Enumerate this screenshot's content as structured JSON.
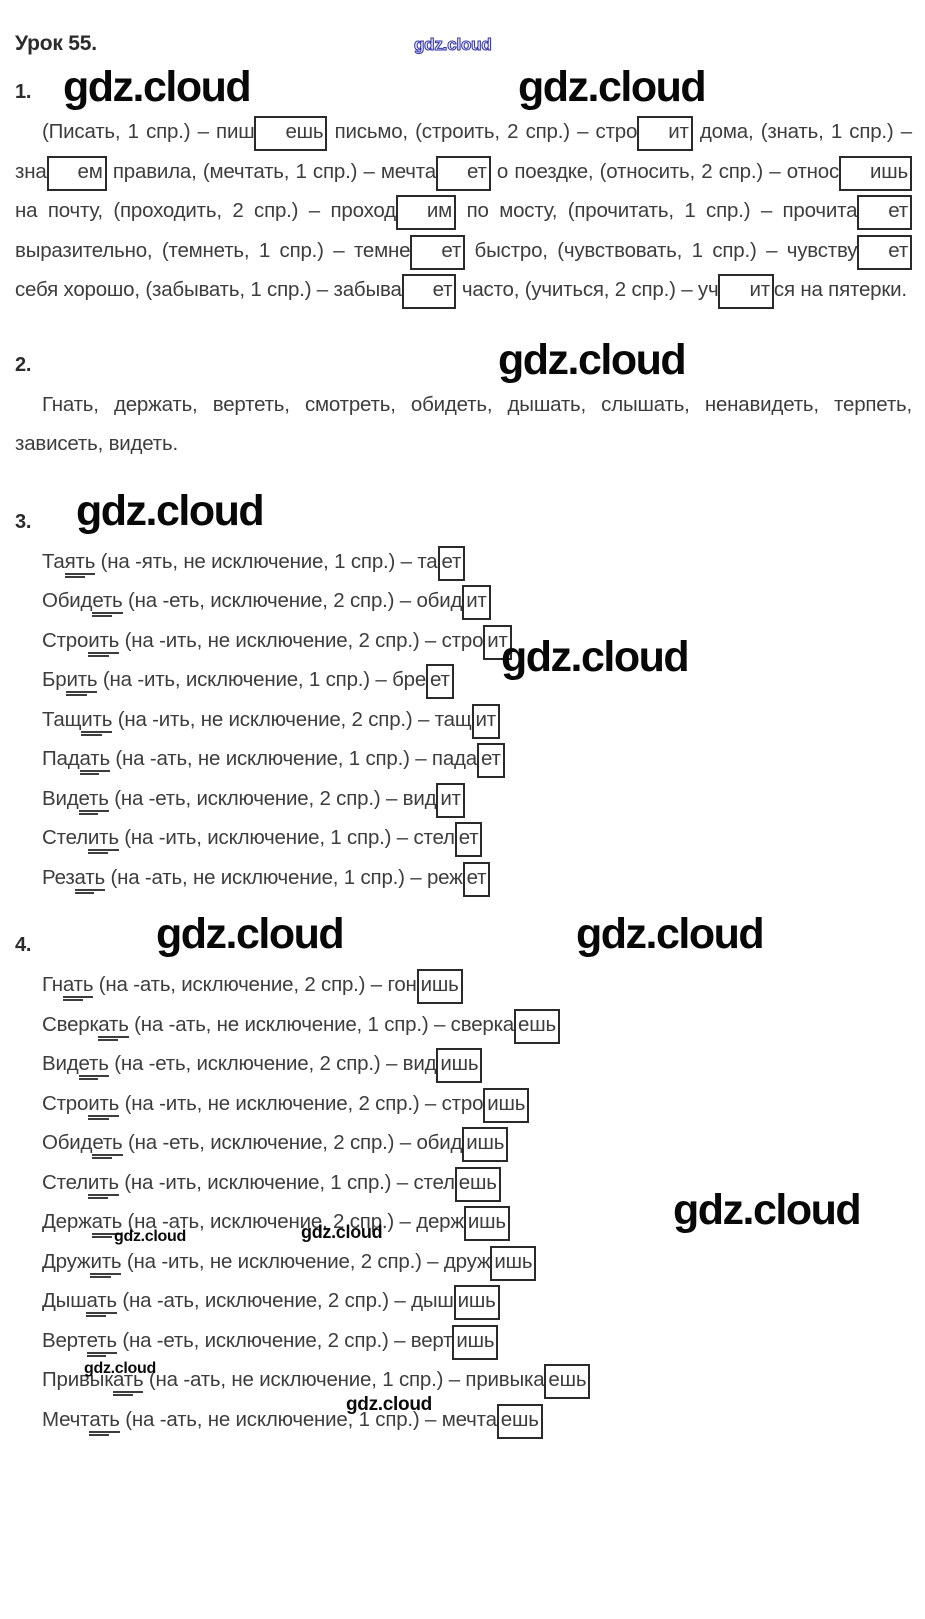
{
  "title": "Урок 55.",
  "watermark": {
    "text": "gdz.cloud"
  },
  "sections": [
    {
      "number": "1.",
      "content": [
        [
          "t",
          "(Писать, 1 спр.) – пиш"
        ],
        [
          "box",
          "ешь"
        ],
        [
          "t",
          " письмо, (строить, 2 спр.) – стро"
        ],
        [
          "box",
          "ит"
        ],
        [
          "t",
          " дома, (знать, 1 спр.) – зна"
        ],
        [
          "box",
          "ем"
        ],
        [
          "t",
          " правила, (мечтать, 1 спр.) – мечта"
        ],
        [
          "box",
          "ет"
        ],
        [
          "t",
          " о поездке, (относить, 2 спр.) – относ"
        ],
        [
          "box",
          "ишь"
        ],
        [
          "t",
          " на почту, (проходить, 2 спр.) – проход"
        ],
        [
          "box",
          "им"
        ],
        [
          "t",
          " по мосту, (прочитать, 1 спр.) – прочита"
        ],
        [
          "box",
          "ет"
        ],
        [
          "t",
          " выразительно, (темнеть, 1 спр.) – темне"
        ],
        [
          "box",
          "ет"
        ],
        [
          "t",
          " быстро, (чувствовать, 1 спр.) – чувству"
        ],
        [
          "box",
          "ет"
        ],
        [
          "t",
          " себя хорошо, (забывать, 1 спр.) – забыва"
        ],
        [
          "box",
          "ет"
        ],
        [
          "t",
          " часто, (учиться, 2 спр.) – уч"
        ],
        [
          "box",
          "ит"
        ],
        [
          "t",
          "ся на пятерки."
        ]
      ]
    },
    {
      "number": "2.",
      "content": [
        [
          "t",
          "Гнать, держать, вертеть, смотреть, обидеть, дышать, слышать, ненавидеть, терпеть, зависеть, видеть."
        ]
      ]
    },
    {
      "number": "3.",
      "items": [
        [
          [
            "t",
            "Та"
          ],
          [
            "u",
            "ять"
          ],
          [
            "t",
            " (на -ять, не исключение, 1 спр.) – та"
          ],
          [
            "box",
            "ет"
          ]
        ],
        [
          [
            "t",
            "Обид"
          ],
          [
            "u",
            "еть"
          ],
          [
            "t",
            " (на -еть, исключение, 2 спр.) – обид"
          ],
          [
            "box",
            "ит"
          ]
        ],
        [
          [
            "t",
            "Стро"
          ],
          [
            "u",
            "ить"
          ],
          [
            "t",
            " (на -ить, не исключение, 2 спр.) – стро"
          ],
          [
            "box",
            "ит"
          ]
        ],
        [
          [
            "t",
            "Бр"
          ],
          [
            "u",
            "ить"
          ],
          [
            "t",
            " (на -ить, исключение, 1 спр.) – бре"
          ],
          [
            "box",
            "ет"
          ]
        ],
        [
          [
            "t",
            "Тащ"
          ],
          [
            "u",
            "ить"
          ],
          [
            "t",
            " (на -ить, не исключение, 2 спр.) – тащ"
          ],
          [
            "box",
            "ит"
          ]
        ],
        [
          [
            "t",
            "Пад"
          ],
          [
            "u",
            "ать"
          ],
          [
            "t",
            " (на -ать, не исключение, 1 спр.) – пада"
          ],
          [
            "box",
            "ет"
          ]
        ],
        [
          [
            "t",
            "Вид"
          ],
          [
            "u",
            "еть"
          ],
          [
            "t",
            " (на -еть, исключение, 2 спр.) – вид"
          ],
          [
            "box",
            "ит"
          ]
        ],
        [
          [
            "t",
            "Стел"
          ],
          [
            "u",
            "ить"
          ],
          [
            "t",
            " (на -ить, исключение, 1 спр.) – стел"
          ],
          [
            "box",
            "ет"
          ]
        ],
        [
          [
            "t",
            "Рез"
          ],
          [
            "u",
            "ать"
          ],
          [
            "t",
            " (на -ать, не исключение, 1 спр.) – реж"
          ],
          [
            "box",
            "ет"
          ]
        ]
      ]
    },
    {
      "number": "4.",
      "items": [
        [
          [
            "t",
            "Гн"
          ],
          [
            "u",
            "ать"
          ],
          [
            "t",
            " (на -ать, исключение, 2 спр.) – гон"
          ],
          [
            "box",
            "ишь"
          ]
        ],
        [
          [
            "t",
            "Сверк"
          ],
          [
            "u",
            "ать"
          ],
          [
            "t",
            " (на -ать, не исключение, 1 спр.) – сверка"
          ],
          [
            "box",
            "ешь"
          ]
        ],
        [
          [
            "t",
            "Вид"
          ],
          [
            "u",
            "еть"
          ],
          [
            "t",
            " (на -еть, исключение, 2 спр.) – вид"
          ],
          [
            "box",
            "ишь"
          ]
        ],
        [
          [
            "t",
            "Стро"
          ],
          [
            "u",
            "ить"
          ],
          [
            "t",
            " (на -ить, не исключение, 2 спр.) – стро"
          ],
          [
            "box",
            "ишь"
          ]
        ],
        [
          [
            "t",
            "Обид"
          ],
          [
            "u",
            "еть"
          ],
          [
            "t",
            " (на -еть, исключение, 2 спр.) – обид"
          ],
          [
            "box",
            "ишь"
          ]
        ],
        [
          [
            "t",
            "Стел"
          ],
          [
            "u",
            "ить"
          ],
          [
            "t",
            " (на -ить, исключение, 1 спр.) – стел"
          ],
          [
            "box",
            "ешь"
          ]
        ],
        [
          [
            "t",
            "Держ"
          ],
          [
            "u",
            "ать"
          ],
          [
            "t",
            " (на -ать, исключение, 2 спр.) – держ"
          ],
          [
            "box",
            "ишь"
          ]
        ],
        [
          [
            "t",
            "Друж"
          ],
          [
            "u",
            "ить"
          ],
          [
            "t",
            " (на -ить, не исключение, 2 спр.) – друж"
          ],
          [
            "box",
            "ишь"
          ]
        ],
        [
          [
            "t",
            "Дыш"
          ],
          [
            "u",
            "ать"
          ],
          [
            "t",
            " (на -ать, исключение, 2 спр.) – дыш"
          ],
          [
            "box",
            "ишь"
          ]
        ],
        [
          [
            "t",
            "Верт"
          ],
          [
            "u",
            "еть"
          ],
          [
            "t",
            " (на -еть, исключение, 2 спр.) – верт"
          ],
          [
            "box",
            "ишь"
          ]
        ],
        [
          [
            "t",
            "Привык"
          ],
          [
            "u",
            "ать"
          ],
          [
            "t",
            " (на -ать, не исключение, 1 спр.) – привыка"
          ],
          [
            "box",
            "ешь"
          ]
        ],
        [
          [
            "t",
            "Мечт"
          ],
          [
            "u",
            "ать"
          ],
          [
            "t",
            " (на -ать, не исключение, 1 спр.) – мечта"
          ],
          [
            "box",
            "ешь"
          ]
        ]
      ]
    }
  ]
}
